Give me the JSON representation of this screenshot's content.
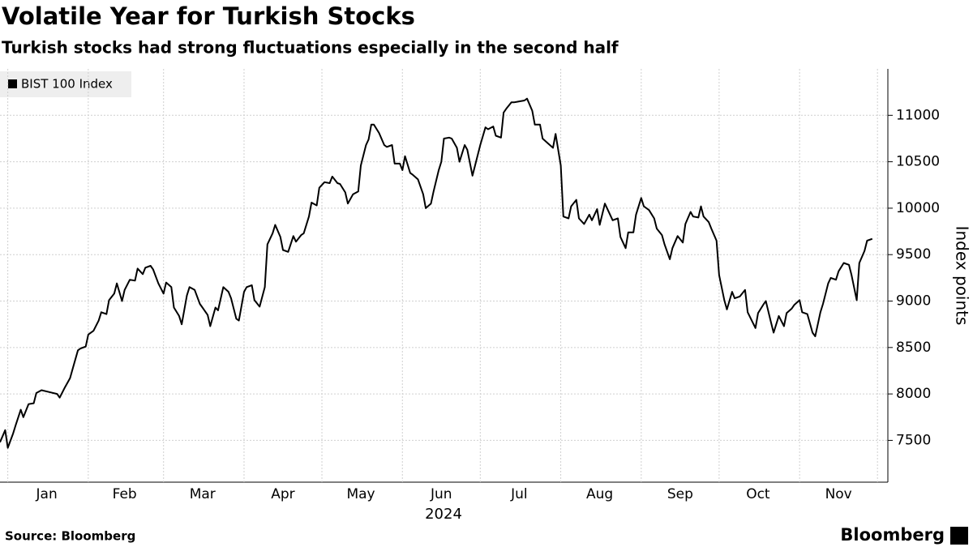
{
  "chart_data": {
    "type": "line",
    "title": "Volatile Year for Turkish Stocks",
    "subtitle": "Turkish stocks had strong fluctuations especially in the second half",
    "ylabel": "Index points",
    "xlabel": "2024",
    "source": "Source: Bloomberg",
    "brand": "Bloomberg",
    "grid": true,
    "legend": "top-left",
    "xlim": [
      -2,
      340
    ],
    "ylim": [
      7050,
      11500
    ],
    "yticks": [
      7500,
      8000,
      8500,
      9000,
      9500,
      10000,
      10500,
      11000
    ],
    "xticks": [
      1,
      32,
      61,
      92,
      122,
      153,
      183,
      214,
      245,
      275,
      306,
      336
    ],
    "month_labels": [
      {
        "value": 16,
        "label": "Jan"
      },
      {
        "value": 46,
        "label": "Feb"
      },
      {
        "value": 76,
        "label": "Mar"
      },
      {
        "value": 107,
        "label": "Apr"
      },
      {
        "value": 137,
        "label": "May"
      },
      {
        "value": 168,
        "label": "Jun"
      },
      {
        "value": 198,
        "label": "Jul"
      },
      {
        "value": 229,
        "label": "Aug"
      },
      {
        "value": 260,
        "label": "Sep"
      },
      {
        "value": 290,
        "label": "Oct"
      },
      {
        "value": 321,
        "label": "Nov"
      }
    ],
    "x": [
      -2,
      0,
      1,
      3,
      4,
      6,
      7,
      9,
      11,
      12,
      14,
      17,
      20,
      21,
      23,
      25,
      26,
      28,
      29,
      31,
      32,
      34,
      36,
      37,
      39,
      40,
      42,
      43,
      45,
      46,
      48,
      50,
      51,
      53,
      54,
      56,
      57,
      59,
      61,
      62,
      64,
      65,
      67,
      68,
      70,
      71,
      73,
      75,
      76,
      78,
      79,
      81,
      82,
      84,
      86,
      87,
      89,
      90,
      92,
      93,
      95,
      96,
      98,
      100,
      101,
      103,
      104,
      106,
      107,
      109,
      111,
      112,
      114,
      115,
      117,
      118,
      120,
      121,
      123,
      125,
      126,
      128,
      129,
      131,
      132,
      134,
      136,
      137,
      139,
      140,
      141,
      142,
      144,
      146,
      147,
      149,
      150,
      152,
      153,
      154,
      156,
      157,
      159,
      161,
      162,
      164,
      165,
      167,
      168,
      169,
      171,
      172,
      174,
      175,
      177,
      178,
      180,
      181,
      183,
      185,
      186,
      188,
      189,
      191,
      192,
      193,
      195,
      196,
      198,
      200,
      201,
      203,
      204,
      206,
      207,
      209,
      211,
      212,
      214,
      215,
      217,
      218,
      220,
      221,
      223,
      225,
      226,
      228,
      229,
      231,
      232,
      234,
      236,
      237,
      239,
      240,
      242,
      243,
      245,
      246,
      248,
      250,
      251,
      253,
      254,
      256,
      257,
      259,
      261,
      262,
      264,
      265,
      267,
      268,
      269,
      271,
      272,
      274,
      275,
      277,
      278,
      280,
      281,
      283,
      285,
      286,
      289,
      290,
      292,
      293,
      295,
      296,
      298,
      300,
      301,
      303,
      304,
      306,
      307,
      309,
      311,
      312,
      314,
      315,
      317,
      318,
      320,
      321,
      323,
      325,
      326,
      328,
      329,
      331,
      332,
      334
    ],
    "series": [
      {
        "name": "BIST 100 Index",
        "color": "#000000",
        "values": [
          7480,
          7610,
          7420,
          7570,
          7660,
          7830,
          7750,
          7890,
          7900,
          8010,
          8040,
          8020,
          8000,
          7960,
          8070,
          8170,
          8270,
          8470,
          8490,
          8510,
          8640,
          8680,
          8790,
          8880,
          8860,
          9010,
          9080,
          9190,
          9000,
          9120,
          9230,
          9220,
          9350,
          9290,
          9360,
          9380,
          9340,
          9190,
          9080,
          9200,
          9150,
          8930,
          8840,
          8750,
          9060,
          9150,
          9120,
          8970,
          8930,
          8850,
          8730,
          8930,
          8900,
          9150,
          9100,
          9030,
          8810,
          8790,
          9100,
          9150,
          9170,
          9010,
          8940,
          9150,
          9610,
          9730,
          9820,
          9690,
          9550,
          9530,
          9700,
          9640,
          9710,
          9730,
          9910,
          10060,
          10030,
          10220,
          10280,
          10270,
          10340,
          10270,
          10260,
          10170,
          10050,
          10150,
          10180,
          10460,
          10680,
          10740,
          10900,
          10900,
          10810,
          10680,
          10660,
          10680,
          10480,
          10480,
          10410,
          10560,
          10380,
          10360,
          10310,
          10150,
          10000,
          10050,
          10180,
          10410,
          10500,
          10750,
          10760,
          10750,
          10650,
          10500,
          10680,
          10630,
          10350,
          10460,
          10680,
          10870,
          10850,
          10880,
          10780,
          10760,
          11030,
          11070,
          11140,
          11140,
          11150,
          11160,
          11180,
          11050,
          10900,
          10900,
          10750,
          10700,
          10650,
          10800,
          10460,
          9910,
          9890,
          10020,
          10090,
          9890,
          9830,
          9930,
          9870,
          9990,
          9820,
          10050,
          9990,
          9870,
          9890,
          9690,
          9570,
          9740,
          9740,
          9930,
          10110,
          10020,
          9980,
          9890,
          9780,
          9710,
          9610,
          9450,
          9570,
          9700,
          9630,
          9830,
          9960,
          9910,
          9900,
          10020,
          9910,
          9850,
          9780,
          9650,
          9280,
          9010,
          8910,
          9100,
          9030,
          9050,
          9120,
          8880,
          8710,
          8870,
          8960,
          9000,
          8770,
          8660,
          8840,
          8730,
          8870,
          8920,
          8960,
          9010,
          8880,
          8860,
          8660,
          8620,
          8880,
          8970,
          9190,
          9250,
          9230,
          9320,
          9410,
          9390,
          9280,
          9010,
          9410,
          9540,
          9650,
          9670
        ]
      }
    ]
  }
}
